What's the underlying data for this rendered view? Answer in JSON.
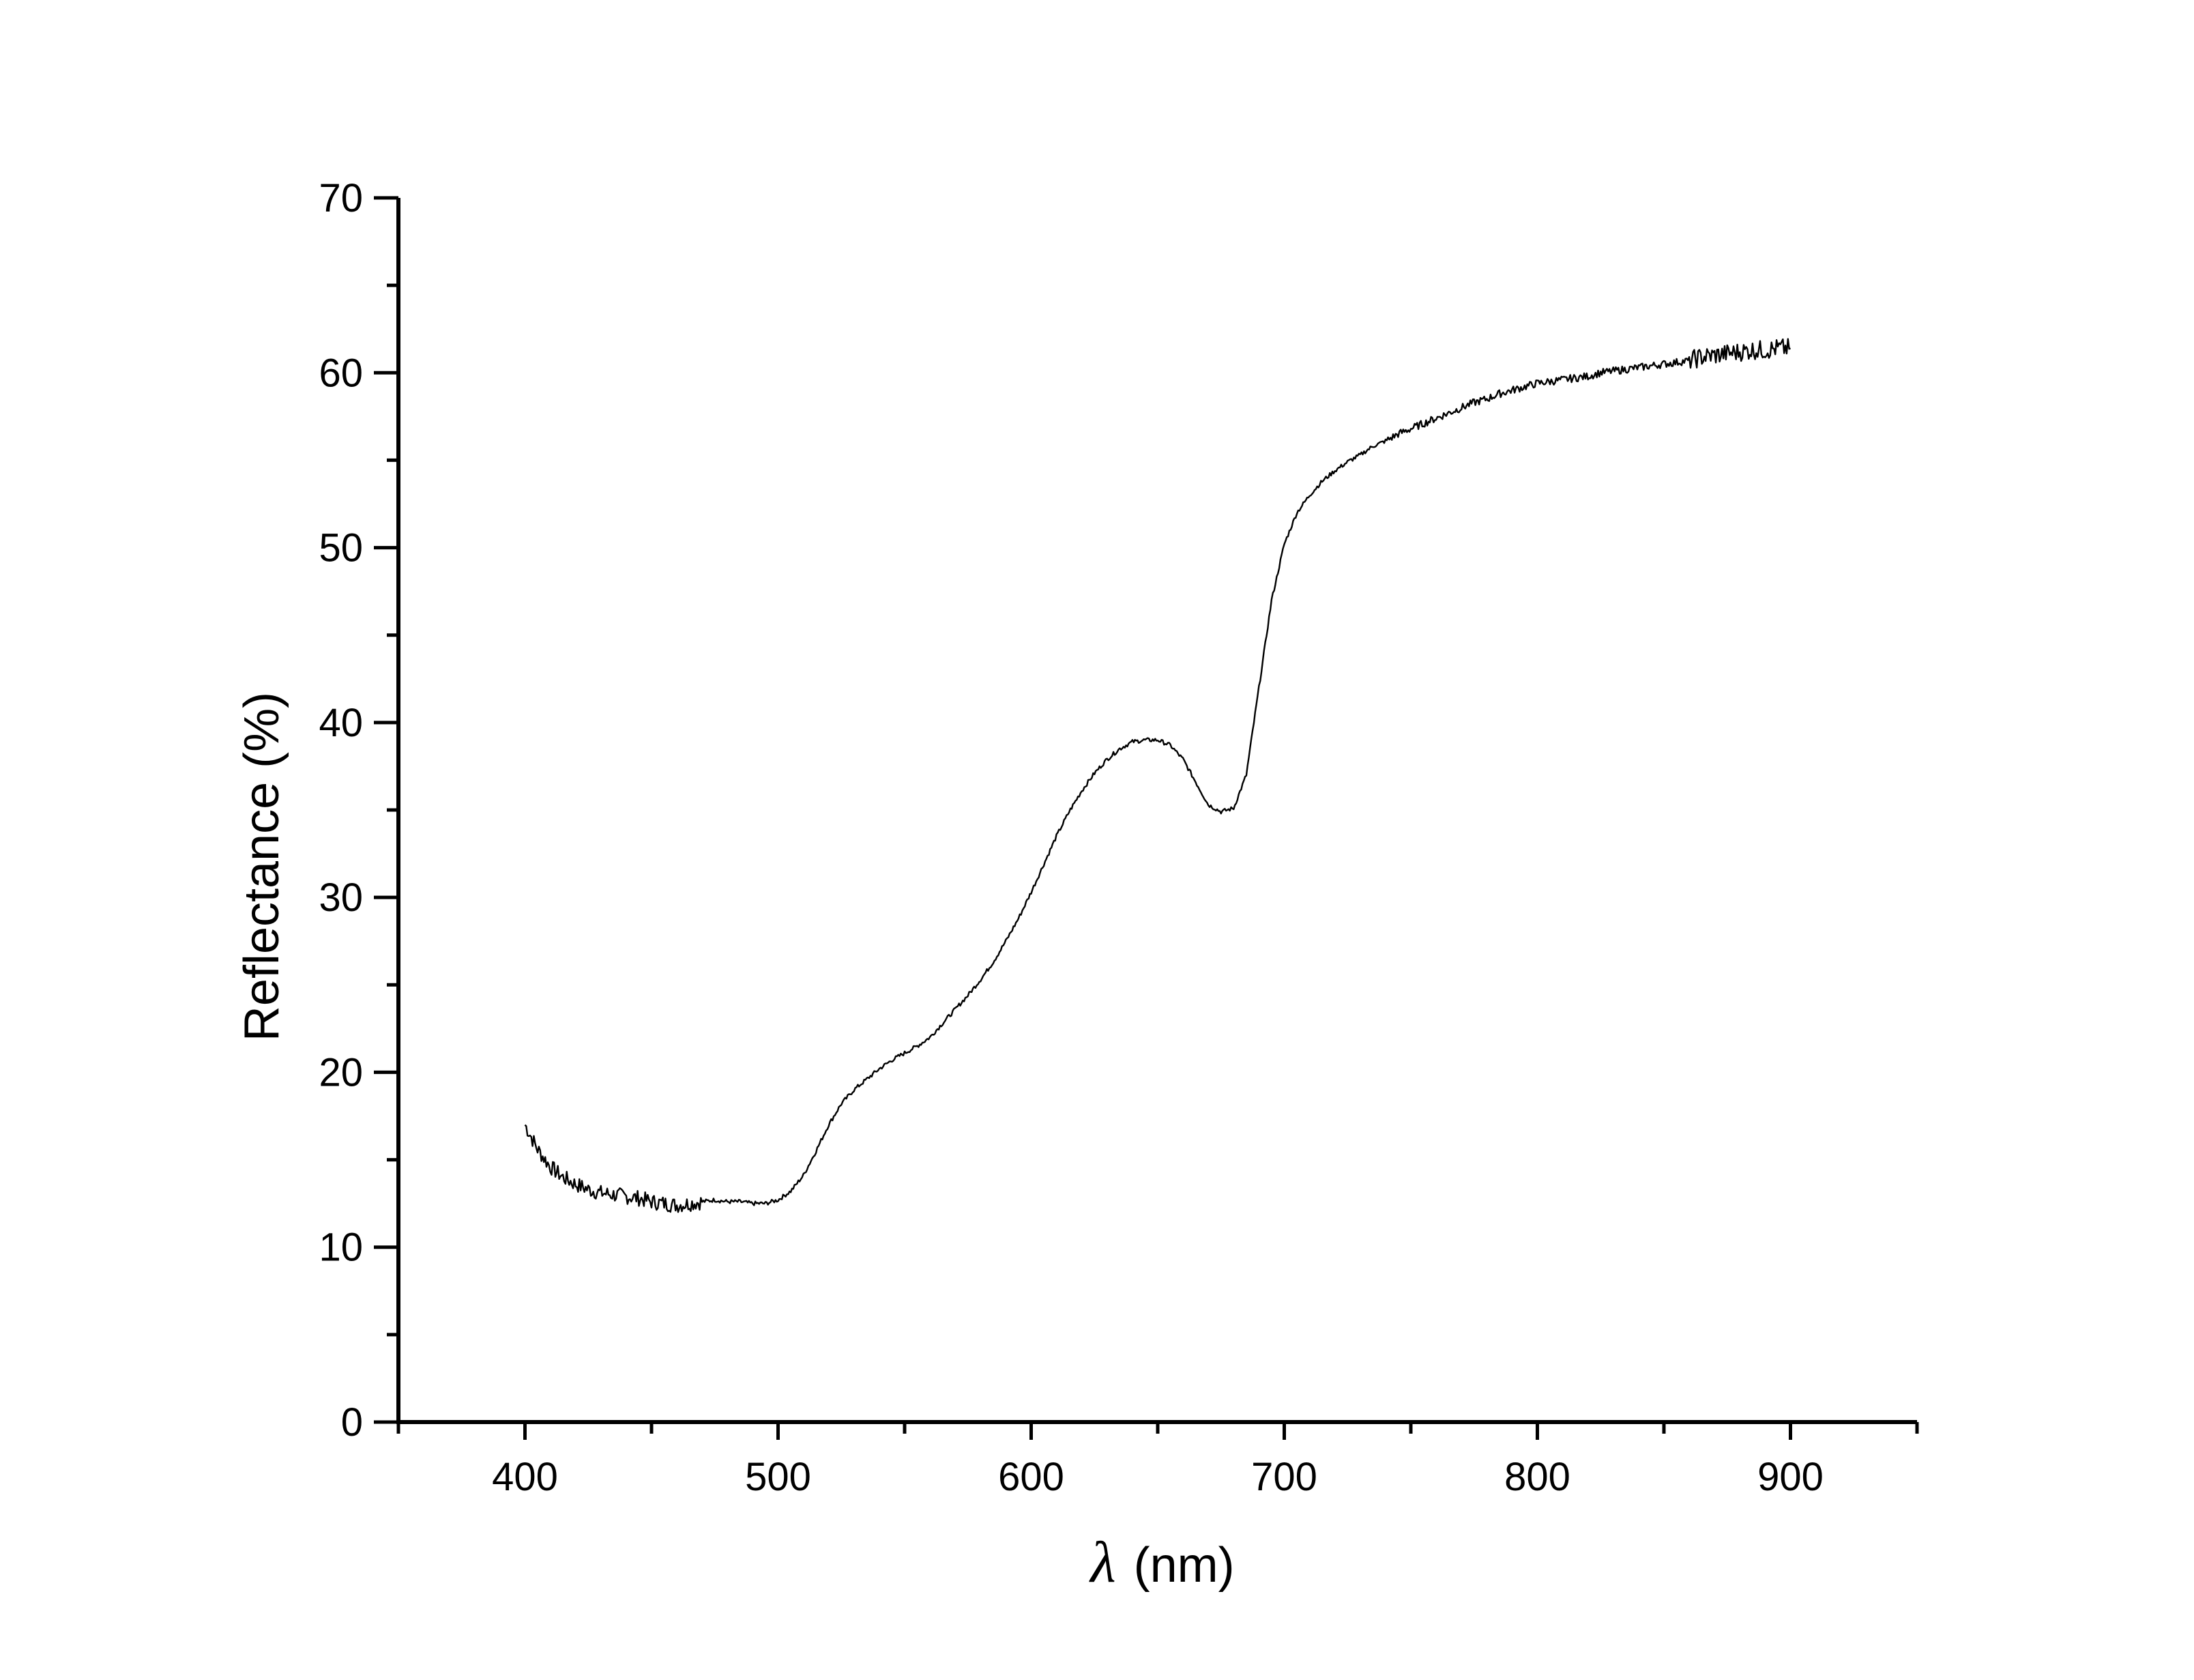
{
  "chart_data": {
    "type": "line",
    "xlabel_symbol": "λ",
    "xlabel_unit": "(nm)",
    "ylabel": "Reflectance (%)",
    "xlim": [
      350,
      950
    ],
    "ylim": [
      0,
      70
    ],
    "x_ticks": [
      400,
      500,
      600,
      700,
      800,
      900
    ],
    "x_tick_labels": [
      "400",
      "500",
      "600",
      "700",
      "800",
      "900"
    ],
    "y_ticks": [
      0,
      10,
      20,
      30,
      40,
      50,
      60,
      70
    ],
    "y_tick_labels": [
      "0",
      "10",
      "20",
      "30",
      "40",
      "50",
      "60",
      "70"
    ],
    "grid": false,
    "legend": "none",
    "series": [
      {
        "color": "#000000",
        "x": [
          400,
          405,
          410,
          415,
          420,
          425,
          430,
          435,
          440,
          445,
          450,
          455,
          460,
          465,
          470,
          475,
          480,
          485,
          490,
          495,
          500,
          505,
          510,
          515,
          520,
          525,
          530,
          535,
          540,
          545,
          550,
          555,
          560,
          565,
          570,
          575,
          580,
          585,
          590,
          595,
          600,
          605,
          610,
          615,
          620,
          625,
          630,
          635,
          640,
          645,
          650,
          655,
          660,
          665,
          670,
          675,
          680,
          685,
          690,
          695,
          700,
          705,
          710,
          715,
          720,
          725,
          730,
          735,
          740,
          745,
          750,
          755,
          760,
          765,
          770,
          775,
          780,
          785,
          790,
          795,
          800,
          805,
          810,
          815,
          820,
          825,
          830,
          835,
          840,
          845,
          850,
          855,
          860,
          865,
          870,
          875,
          880,
          885,
          890,
          895,
          900
        ],
        "y": [
          17.0,
          15.6,
          14.6,
          14.0,
          13.6,
          13.3,
          13.1,
          13.0,
          12.9,
          12.8,
          12.6,
          12.5,
          12.4,
          12.5,
          12.6,
          12.7,
          12.6,
          12.6,
          12.5,
          12.5,
          12.7,
          13.2,
          14.1,
          15.5,
          17.0,
          18.2,
          19.0,
          19.6,
          20.2,
          20.7,
          21.1,
          21.5,
          22.0,
          22.8,
          23.6,
          24.4,
          25.3,
          26.3,
          27.5,
          28.8,
          30.3,
          31.9,
          33.5,
          34.9,
          36.1,
          37.1,
          37.9,
          38.5,
          38.9,
          39.0,
          39.0,
          38.7,
          37.9,
          36.6,
          35.3,
          34.9,
          35.1,
          37.0,
          42.0,
          47.0,
          50.2,
          52.0,
          53.0,
          53.8,
          54.4,
          54.9,
          55.3,
          55.8,
          56.1,
          56.5,
          56.8,
          57.1,
          57.4,
          57.7,
          58.0,
          58.3,
          58.5,
          58.8,
          59.0,
          59.2,
          59.4,
          59.5,
          59.6,
          59.7,
          59.8,
          60.0,
          60.1,
          60.2,
          60.3,
          60.4,
          60.5,
          60.6,
          60.7,
          60.9,
          61.0,
          61.1,
          61.2,
          61.3,
          61.3,
          61.4,
          61.4
        ]
      }
    ]
  }
}
